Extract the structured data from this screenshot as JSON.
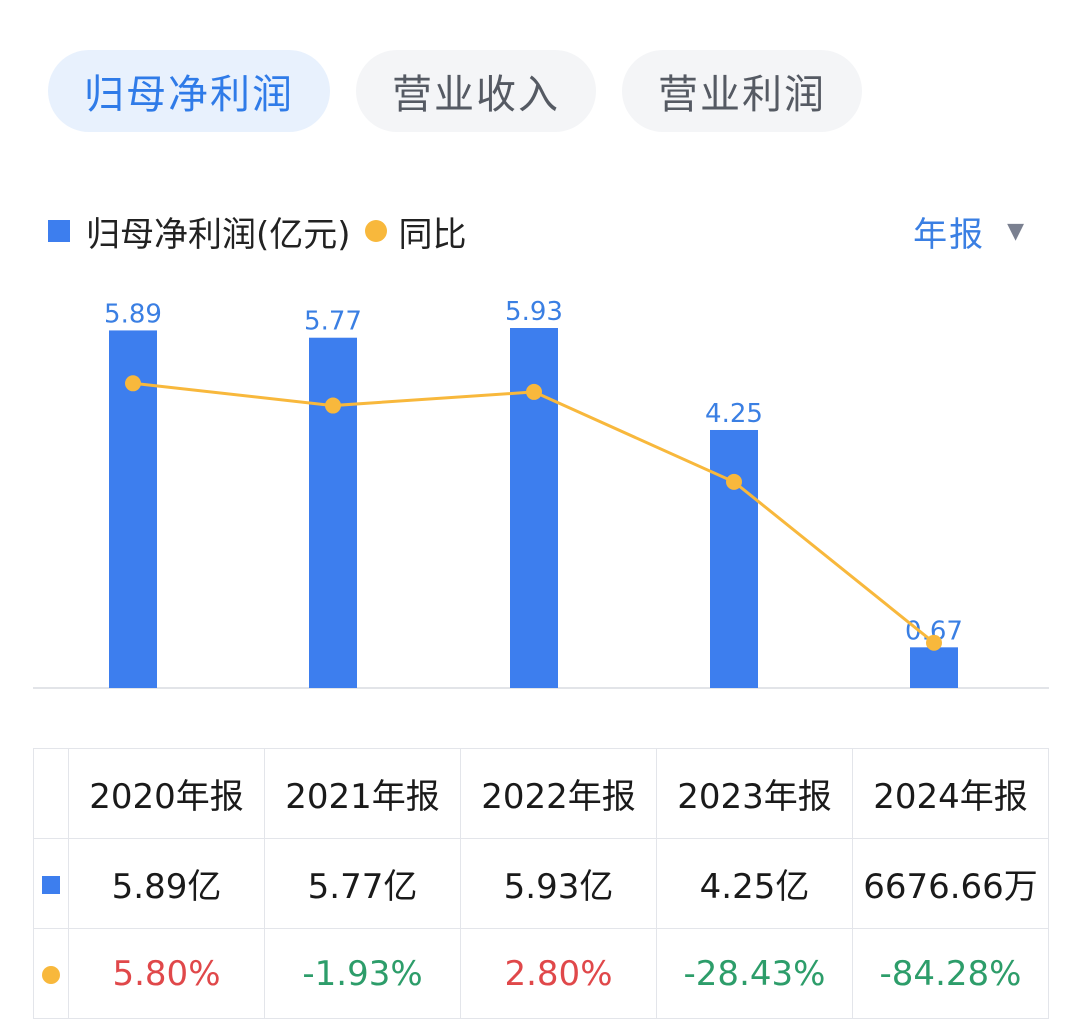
{
  "tabs": [
    {
      "label": "归母净利润",
      "active": true
    },
    {
      "label": "营业收入",
      "active": false
    },
    {
      "label": "营业利润",
      "active": false
    }
  ],
  "legend": {
    "bar_label": "归母净利润(亿元)",
    "line_label": "同比"
  },
  "period_select": {
    "value": "年报"
  },
  "colors": {
    "bar": "#3d7eee",
    "line": "#f8b83c",
    "label": "#3a7fe3",
    "positive": "#e0484a",
    "negative": "#2d9d6a"
  },
  "chart_data": {
    "type": "bar",
    "categories": [
      "2020年报",
      "2021年报",
      "2022年报",
      "2023年报",
      "2024年报"
    ],
    "series": [
      {
        "name": "归母净利润(亿元)",
        "type": "bar",
        "values": [
          5.89,
          5.77,
          5.93,
          4.25,
          0.67
        ],
        "labels": [
          "5.89",
          "5.77",
          "5.93",
          "4.25",
          "0.67"
        ]
      },
      {
        "name": "同比",
        "type": "line",
        "values": [
          5.8,
          -1.93,
          2.8,
          -28.43,
          -84.28
        ],
        "unit": "%"
      }
    ],
    "ylim": [
      0,
      5.93
    ],
    "y2lim": [
      -100,
      25
    ],
    "legend": "top-left",
    "grid": false
  },
  "table": {
    "headers": [
      "2020年报",
      "2021年报",
      "2022年报",
      "2023年报",
      "2024年报"
    ],
    "values": [
      "5.89亿",
      "5.77亿",
      "5.93亿",
      "4.25亿",
      "6676.66万"
    ],
    "yoy": [
      "5.80%",
      "-1.93%",
      "2.80%",
      "-28.43%",
      "-84.28%"
    ]
  }
}
